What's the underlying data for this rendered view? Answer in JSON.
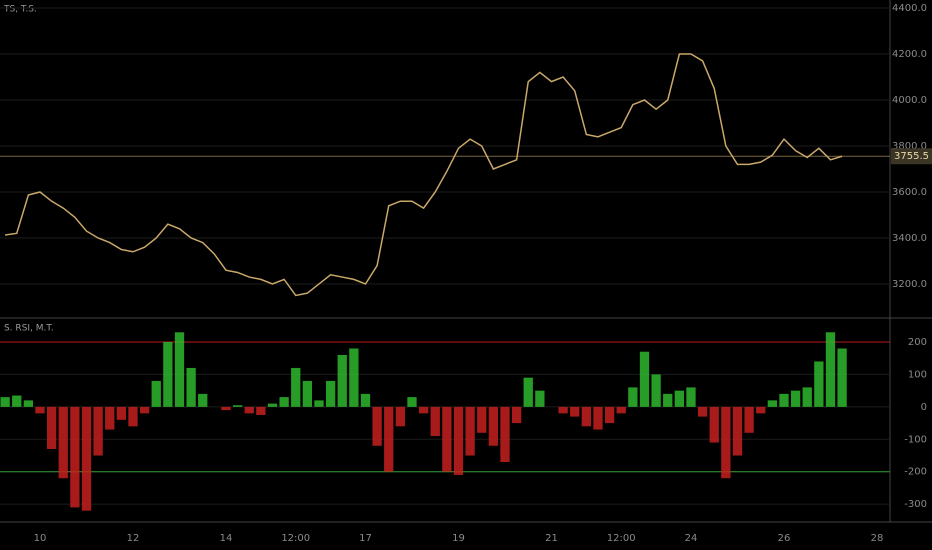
{
  "chart_data": [
    {
      "type": "line",
      "title": "TS, T.S.",
      "color": "#c9a86a",
      "x": [
        9.25,
        9.5,
        9.75,
        10,
        10.25,
        10.5,
        10.75,
        11,
        11.25,
        11.5,
        11.75,
        12,
        12.25,
        12.5,
        12.75,
        13,
        13.25,
        13.5,
        13.75,
        14,
        14.25,
        14.5,
        14.75,
        15,
        15.25,
        15.5,
        15.75,
        16,
        16.25,
        16.5,
        16.75,
        17,
        17.25,
        17.5,
        17.75,
        18,
        18.25,
        18.5,
        18.75,
        19,
        19.25,
        19.5,
        19.75,
        20,
        20.25,
        20.5,
        20.75,
        21,
        21.25,
        21.5,
        21.75,
        22,
        22.25,
        22.5,
        22.75,
        23,
        23.25,
        23.5,
        23.75,
        24,
        24.25,
        24.5,
        24.75,
        25,
        25.25,
        25.5,
        25.75,
        26,
        26.25,
        26.5,
        26.75,
        27,
        27.25
      ],
      "series": [
        {
          "name": "TS",
          "color": "#c9a86a",
          "values": [
            3413,
            3420,
            3587,
            3600,
            3560,
            3530,
            3490,
            3430,
            3400,
            3380,
            3350,
            3340,
            3360,
            3400,
            3460,
            3440,
            3400,
            3380,
            3330,
            3260,
            3250,
            3230,
            3220,
            3200,
            3220,
            3150,
            3160,
            3200,
            3240,
            3230,
            3220,
            3200,
            3280,
            3540,
            3560,
            3560,
            3530,
            3600,
            3690,
            3790,
            3830,
            3800,
            3700,
            3720,
            3740,
            4080,
            4120,
            4080,
            4100,
            4040,
            3850,
            3840,
            3860,
            3880,
            3980,
            4000,
            3960,
            4000,
            4200,
            4200,
            4170,
            4050,
            3800,
            3720,
            3720,
            3730,
            3760,
            3830,
            3780,
            3750,
            3790,
            3740,
            3755.5
          ]
        }
      ],
      "xlim": [
        9.14,
        28.28
      ],
      "ylim": [
        3052,
        4435
      ],
      "yticks": [
        {
          "value": 3200,
          "label": "3200.0"
        },
        {
          "value": 3400,
          "label": "3400.0"
        },
        {
          "value": 3600,
          "label": "3600.0"
        },
        {
          "value": 3800,
          "label": "3800.0"
        },
        {
          "value": 4000,
          "label": "4000.0"
        },
        {
          "value": 4200,
          "label": "4200.0"
        },
        {
          "value": 4400,
          "label": "4400.0"
        }
      ]
    },
    {
      "type": "bar",
      "title": "S. RSI, M.T.",
      "up_color": "#2eb82e",
      "down_color": "#c62020",
      "x": [
        9.25,
        9.5,
        9.75,
        10,
        10.25,
        10.5,
        10.75,
        11,
        11.25,
        11.5,
        11.75,
        12,
        12.25,
        12.5,
        12.75,
        13,
        13.25,
        13.5,
        13.75,
        14,
        14.25,
        14.5,
        14.75,
        15,
        15.25,
        15.5,
        15.75,
        16,
        16.25,
        16.5,
        16.75,
        17,
        17.25,
        17.5,
        17.75,
        18,
        18.25,
        18.5,
        18.75,
        19,
        19.25,
        19.5,
        19.75,
        20,
        20.25,
        20.5,
        20.75,
        21,
        21.25,
        21.5,
        21.75,
        22,
        22.25,
        22.5,
        22.75,
        23,
        23.25,
        23.5,
        23.75,
        24,
        24.25,
        24.5,
        24.75,
        25,
        25.25,
        25.5,
        25.75,
        26,
        26.25,
        26.5,
        26.75,
        27,
        27.25
      ],
      "values": [
        30,
        35,
        20,
        -20,
        -130,
        -220,
        -310,
        -320,
        -150,
        -70,
        -40,
        -60,
        -20,
        80,
        200,
        230,
        120,
        40,
        0,
        -10,
        5,
        -20,
        -25,
        10,
        30,
        120,
        80,
        20,
        80,
        160,
        180,
        40,
        -120,
        -200,
        -60,
        30,
        -20,
        -90,
        -200,
        -210,
        -150,
        -80,
        -120,
        -170,
        -50,
        90,
        50,
        0,
        -20,
        -30,
        -60,
        -70,
        -50,
        -20,
        60,
        170,
        100,
        40,
        50,
        60,
        -30,
        -110,
        -220,
        -150,
        -80,
        -20,
        20,
        40,
        50,
        60,
        140,
        230,
        180
      ],
      "hlines": [
        {
          "value": 200,
          "color": "#b71c1c"
        },
        {
          "value": -200,
          "color": "#2e9e2e"
        }
      ],
      "xlim": [
        9.14,
        28.28
      ],
      "ylim": [
        -355,
        274
      ],
      "yticks": [
        -300,
        -200,
        -100,
        0,
        100,
        200
      ],
      "xticks": [
        {
          "value": 10,
          "label": "10"
        },
        {
          "value": 12,
          "label": "12"
        },
        {
          "value": 14,
          "label": "14"
        },
        {
          "value": 15.5,
          "label": "12:00"
        },
        {
          "value": 17,
          "label": "17"
        },
        {
          "value": 19,
          "label": "19"
        },
        {
          "value": 21,
          "label": "21"
        },
        {
          "value": 22.5,
          "label": "12:00"
        },
        {
          "value": 24,
          "label": "24"
        },
        {
          "value": 26,
          "label": "26"
        },
        {
          "value": 28,
          "label": "28"
        }
      ]
    }
  ]
}
